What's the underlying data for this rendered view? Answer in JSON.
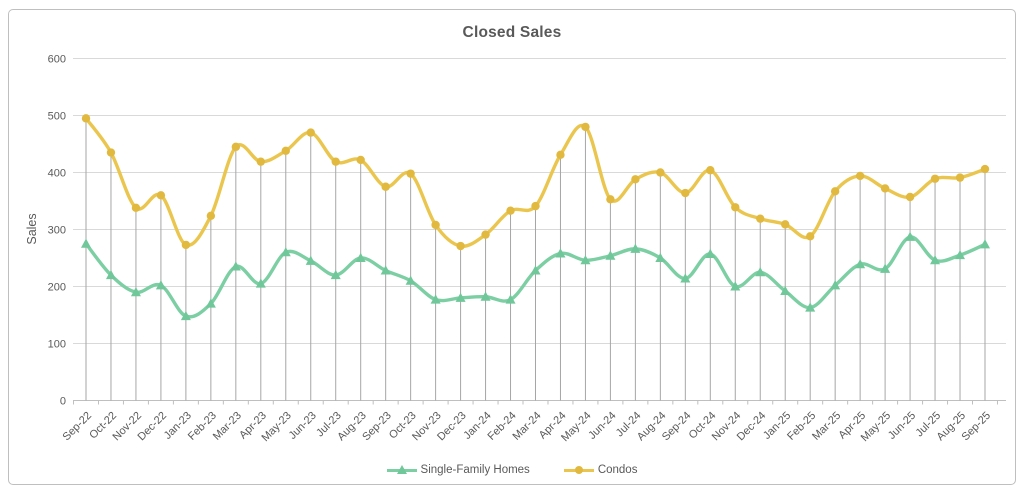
{
  "colors": {
    "text": "#595959",
    "gridline": "#D9D9D9",
    "drop_line": "#A6A6A6",
    "axis": "#BFBFBF",
    "frame_border": "#BFBFBF",
    "single_family_green": "#7CCEA3",
    "condos_yellow": "#EAC64F"
  },
  "chart_data": {
    "type": "line",
    "title": "Closed Sales",
    "xlabel": "",
    "ylabel": "Sales",
    "ylim": [
      0,
      600
    ],
    "yticks": [
      0,
      100,
      200,
      300,
      400,
      500,
      600
    ],
    "grid": "horizontal",
    "drop_lines": true,
    "smooth": true,
    "legend_position": "bottom",
    "categories": [
      "Sep-22",
      "Oct-22",
      "Nov-22",
      "Dec-22",
      "Jan-23",
      "Feb-23",
      "Mar-23",
      "Apr-23",
      "May-23",
      "Jun-23",
      "Jul-23",
      "Aug-23",
      "Sep-23",
      "Oct-23",
      "Nov-23",
      "Dec-23",
      "Jan-24",
      "Feb-24",
      "Mar-24",
      "Apr-24",
      "May-24",
      "Jun-24",
      "Jul-24",
      "Aug-24",
      "Sep-24",
      "Oct-24",
      "Nov-24",
      "Dec-24",
      "Jan-25",
      "Feb-25",
      "Mar-25",
      "Apr-25",
      "May-25",
      "Jun-25",
      "Jul-25",
      "Aug-25",
      "Sep-25"
    ],
    "series": [
      {
        "name": "Single-Family Homes",
        "marker": "triangle",
        "color": "#7CCEA3",
        "marker_color": "#6FC79A",
        "values": [
          275,
          220,
          190,
          202,
          148,
          170,
          235,
          205,
          260,
          245,
          220,
          250,
          228,
          210,
          177,
          180,
          182,
          177,
          228,
          258,
          246,
          254,
          266,
          250,
          214,
          257,
          200,
          225,
          192,
          163,
          202,
          239,
          231,
          287,
          246,
          255,
          274
        ]
      },
      {
        "name": "Condos",
        "marker": "circle",
        "color": "#EAC64F",
        "marker_color": "#E2B93F",
        "values": [
          495,
          435,
          338,
          360,
          273,
          324,
          445,
          419,
          438,
          470,
          419,
          422,
          375,
          398,
          308,
          271,
          291,
          333,
          341,
          431,
          480,
          353,
          388,
          400,
          364,
          404,
          339,
          319,
          309,
          288,
          367,
          394,
          372,
          357,
          389,
          391,
          406
        ]
      }
    ]
  }
}
